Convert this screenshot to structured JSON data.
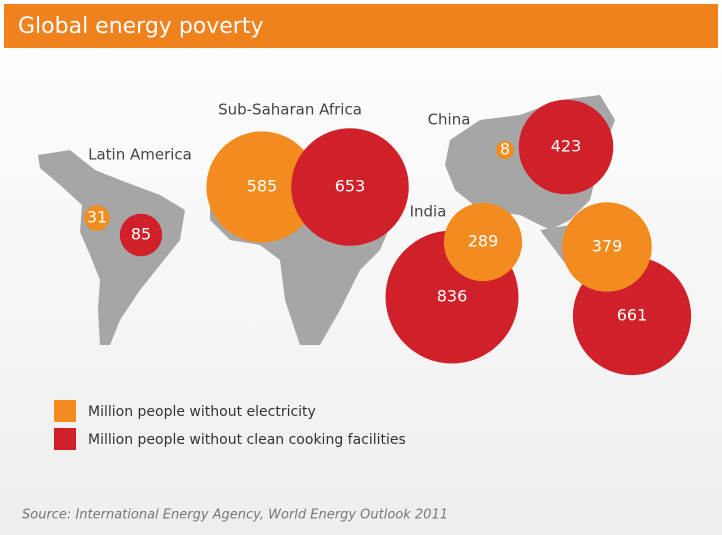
{
  "chart_data": {
    "type": "bubble",
    "title": "Global energy poverty",
    "categories": [
      "Latin America",
      "Sub-Saharan Africa",
      "China",
      "India",
      null
    ],
    "series": [
      {
        "name": "Million people without electricity",
        "color": "#f28c1e",
        "values": [
          31,
          585,
          8,
          289,
          379
        ]
      },
      {
        "name": "Million people without clean cooking facilities",
        "color": "#d0202a",
        "values": [
          85,
          653,
          423,
          836,
          661
        ]
      }
    ],
    "source": "Source: International Energy Agency, World Energy Outlook 2011"
  }
}
